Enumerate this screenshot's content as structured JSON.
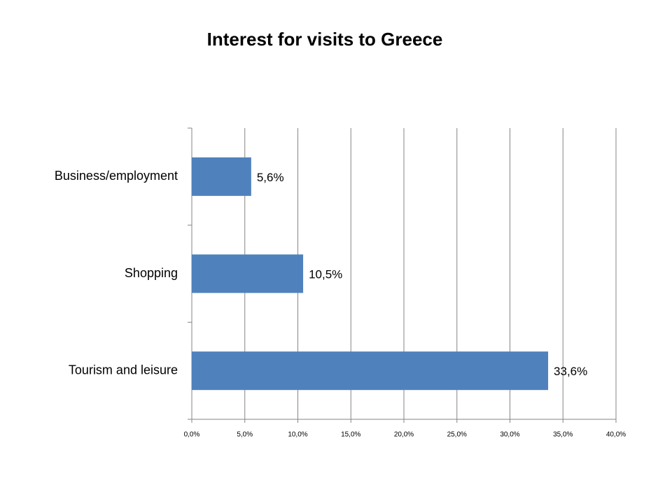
{
  "chart_data": {
    "type": "bar",
    "orientation": "horizontal",
    "title": "Interest for visits to Greece",
    "categories": [
      "Business/employment",
      "Shopping",
      "Tourism and leisure"
    ],
    "values": [
      5.6,
      10.5,
      33.6
    ],
    "value_labels": [
      "5,6%",
      "10,5%",
      "33,6%"
    ],
    "color": "#4f81bd",
    "xlim": [
      0,
      40
    ],
    "xticks": [
      {
        "value": 0,
        "label": "0,0%"
      },
      {
        "value": 5,
        "label": "5,0%"
      },
      {
        "value": 10,
        "label": "10,0%"
      },
      {
        "value": 15,
        "label": "15,0%"
      },
      {
        "value": 20,
        "label": "20,0%"
      },
      {
        "value": 25,
        "label": "25,0%"
      },
      {
        "value": 30,
        "label": "30,0%"
      },
      {
        "value": 35,
        "label": "35,0%"
      },
      {
        "value": 40,
        "label": "40,0%"
      }
    ],
    "grid": true
  }
}
